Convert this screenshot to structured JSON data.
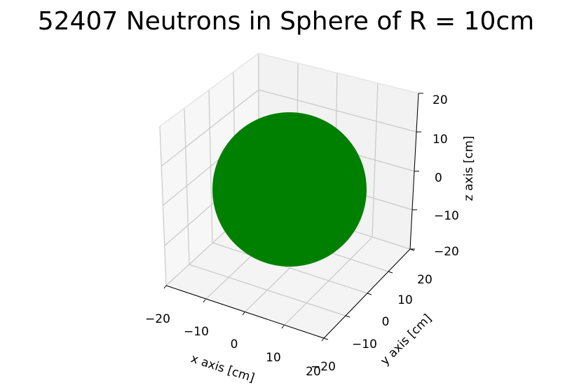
{
  "chart_data": {
    "type": "scatter",
    "projection": "3d",
    "title": "52407 Neutrons in Sphere of R = 10cm",
    "xlabel": "x axis [cm]",
    "ylabel": "y axis [cm]",
    "zlabel": "z axis [cm]",
    "xlim": [
      -20,
      20
    ],
    "ylim": [
      -20,
      20
    ],
    "zlim": [
      -20,
      20
    ],
    "xticks": [
      "−20",
      "−10",
      "0",
      "10",
      "20"
    ],
    "yticks": [
      "−20",
      "−10",
      "0",
      "10",
      "20"
    ],
    "zticks": [
      "−20",
      "−10",
      "0",
      "10",
      "20"
    ],
    "grid": true,
    "series": [
      {
        "center": [
          0,
          0,
          0
        ],
        "radius": 10,
        "count": 52407,
        "color": "#008000"
      }
    ]
  }
}
